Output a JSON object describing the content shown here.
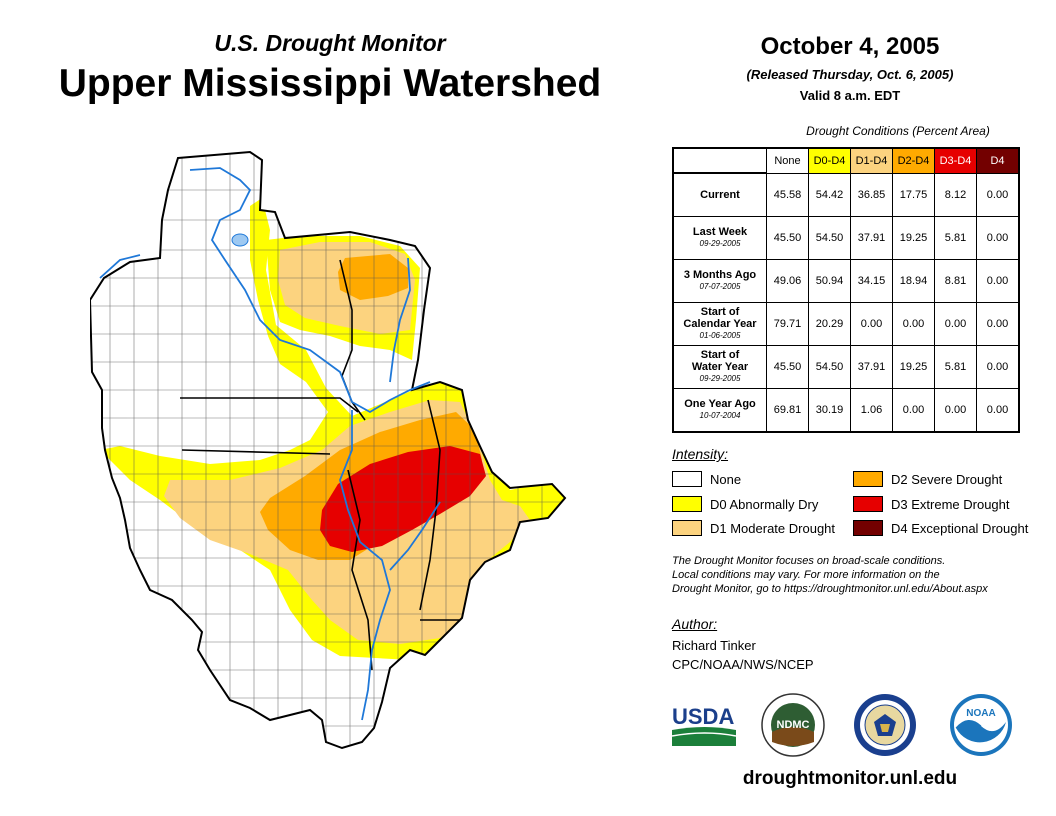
{
  "header": {
    "subtitle": "U.S. Drought Monitor",
    "title": "Upper Mississippi Watershed",
    "date": "October 4, 2005",
    "released": "(Released Thursday, Oct. 6, 2005)",
    "valid": "Valid 8 a.m. EDT"
  },
  "table": {
    "caption": "Drought Conditions (Percent Area)",
    "columns": [
      "None",
      "D0-D4",
      "D1-D4",
      "D2-D4",
      "D3-D4",
      "D4"
    ],
    "rows": [
      {
        "label": "Current",
        "label2": "",
        "date": "",
        "values": [
          "45.58",
          "54.42",
          "36.85",
          "17.75",
          "8.12",
          "0.00"
        ]
      },
      {
        "label": "Last Week",
        "label2": "",
        "date": "09-29-2005",
        "values": [
          "45.50",
          "54.50",
          "37.91",
          "19.25",
          "5.81",
          "0.00"
        ]
      },
      {
        "label": "3 Months Ago",
        "label2": "",
        "date": "07-07-2005",
        "values": [
          "49.06",
          "50.94",
          "34.15",
          "18.94",
          "8.81",
          "0.00"
        ]
      },
      {
        "label": "Start of",
        "label2": "Calendar Year",
        "date": "01-06-2005",
        "values": [
          "79.71",
          "20.29",
          "0.00",
          "0.00",
          "0.00",
          "0.00"
        ]
      },
      {
        "label": "Start of",
        "label2": "Water Year",
        "date": "09-29-2005",
        "values": [
          "45.50",
          "54.50",
          "37.91",
          "19.25",
          "5.81",
          "0.00"
        ]
      },
      {
        "label": "One Year Ago",
        "label2": "",
        "date": "10-07-2004",
        "values": [
          "69.81",
          "30.19",
          "1.06",
          "0.00",
          "0.00",
          "0.00"
        ]
      }
    ]
  },
  "legend": {
    "title": "Intensity:",
    "items": [
      {
        "label": "None",
        "color": "#ffffff"
      },
      {
        "label": "D0 Abnormally Dry",
        "color": "#ffff00"
      },
      {
        "label": "D1 Moderate Drought",
        "color": "#fcd37f"
      },
      {
        "label": "D2 Severe Drought",
        "color": "#ffaa00"
      },
      {
        "label": "D3 Extreme Drought",
        "color": "#e60000"
      },
      {
        "label": "D4 Exceptional Drought",
        "color": "#730000"
      }
    ]
  },
  "note": {
    "line1": "The Drought Monitor focuses on broad-scale conditions.",
    "line2": "Local conditions may vary. For more information on the",
    "line3": "Drought Monitor, go to https://droughtmonitor.unl.edu/About.aspx"
  },
  "author": {
    "title": "Author:",
    "name": "Richard Tinker",
    "org": "CPC/NOAA/NWS/NCEP"
  },
  "logos": {
    "usda": "USDA",
    "ndmc": "NDMC",
    "noaa": "NOAA"
  },
  "footer": {
    "url": "droughtmonitor.unl.edu"
  }
}
